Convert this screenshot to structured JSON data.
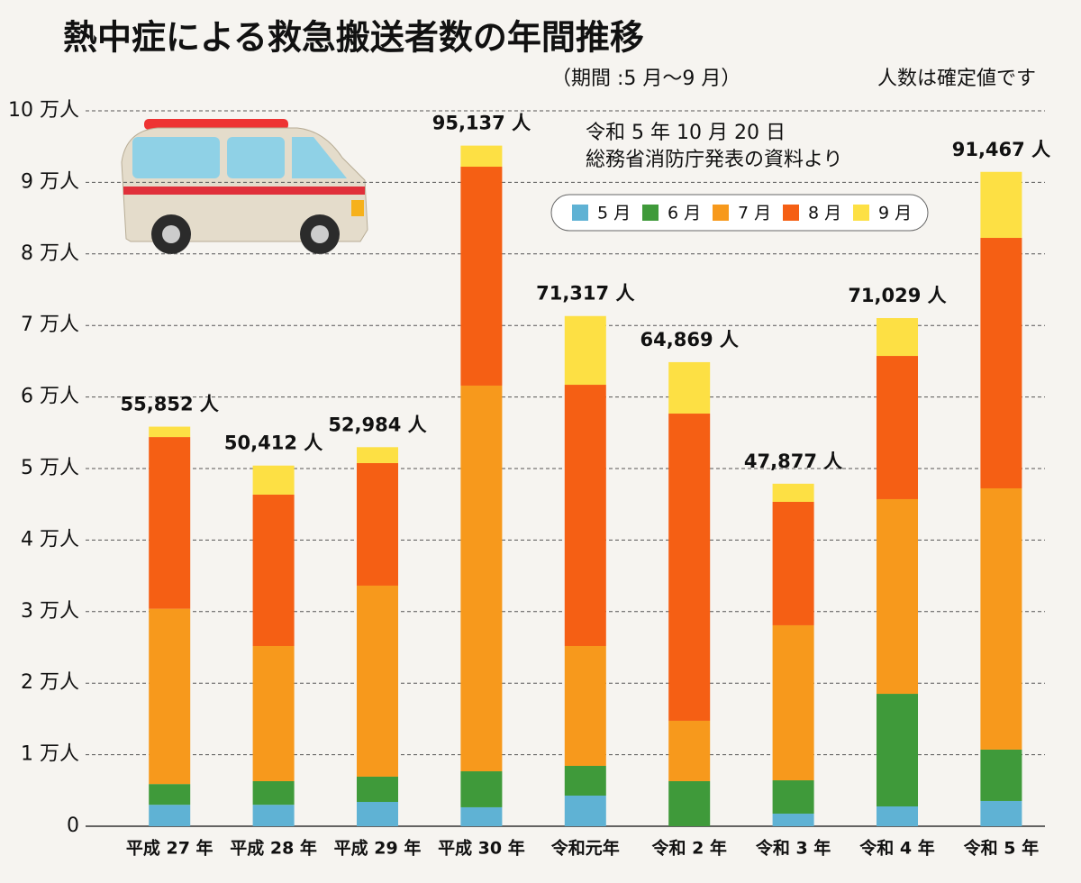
{
  "chart_data": {
    "type": "stacked-bar",
    "title": "熱中症による救急搬送者数の年間推移",
    "subtitle": "（期間 :5 月〜9 月）",
    "note": "人数は確定値です",
    "source": [
      "令和 5 年 10 月 20 日",
      "総務省消防庁発表の資料より"
    ],
    "categories": [
      "平成 27 年",
      "平成 28 年",
      "平成 29 年",
      "平成 30 年",
      "令和元年",
      "令和 2 年",
      "令和 3 年",
      "令和 4 年",
      "令和 5 年"
    ],
    "series": [
      {
        "name": "5 月",
        "color": "#5fb2d4",
        "values": [
          3000,
          3000,
          3400,
          2650,
          4280,
          0,
          1760,
          2770,
          3530
        ]
      },
      {
        "name": "6 月",
        "color": "#3f9a3a",
        "values": [
          2900,
          3300,
          3530,
          5030,
          4160,
          6300,
          4660,
          15740,
          7180
        ]
      },
      {
        "name": "7 月",
        "color": "#f7991c",
        "values": [
          24500,
          18890,
          26700,
          53910,
          16750,
          8440,
          21670,
          27210,
          36520
        ]
      },
      {
        "name": "8 月",
        "color": "#f55f14",
        "values": [
          24000,
          21160,
          17130,
          30600,
          36520,
          42940,
          17250,
          20020,
          35010
        ]
      },
      {
        "name": "9 月",
        "color": "#fde044",
        "values": [
          1452,
          4062,
          2224,
          2947,
          9607,
          7189,
          2537,
          5289,
          9227
        ]
      }
    ],
    "totals": [
      55852,
      50412,
      52984,
      95137,
      71317,
      64869,
      47877,
      71029,
      91467
    ],
    "total_labels": [
      "55,852 人",
      "50,412 人",
      "52,984 人",
      "95,137 人",
      "71,317 人",
      "64,869 人",
      "47,877 人",
      "71,029 人",
      "91,467 人"
    ],
    "ylim": [
      0,
      100000
    ],
    "yticks": [
      0,
      {
        "value": 10000,
        "label": "1 万人"
      },
      {
        "value": 20000,
        "label": "2 万人"
      },
      {
        "value": 30000,
        "label": "3 万人"
      },
      {
        "value": 40000,
        "label": "4 万人"
      },
      {
        "value": 50000,
        "label": "5 万人"
      },
      {
        "value": 60000,
        "label": "6 万人"
      },
      {
        "value": 70000,
        "label": "7 万人"
      },
      {
        "value": 80000,
        "label": "8 万人"
      },
      {
        "value": 90000,
        "label": "9 万人"
      },
      {
        "value": 100000,
        "label": "10 万人"
      }
    ],
    "grid": true
  }
}
